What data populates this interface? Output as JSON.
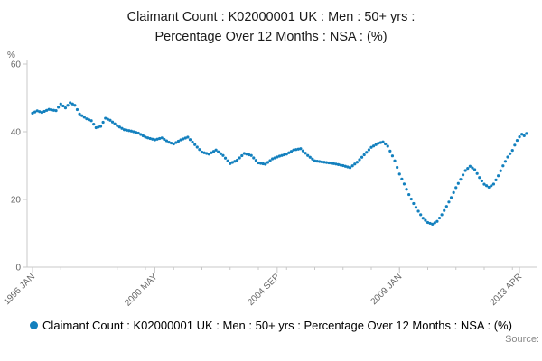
{
  "title": "Claimant Count : K02000001 UK : Men : 50+ yrs :\nPercentage Over 12 Months : NSA : (%)",
  "legend": {
    "label": "Claimant Count : K02000001 UK : Men : 50+ yrs : Percentage Over 12 Months : NSA : (%)",
    "marker_color": "#1380be"
  },
  "source_label": "Source:",
  "colors": {
    "accent": "#1380be",
    "axis_line": "#c8c8c8",
    "tick_text": "#666666"
  },
  "chart_data": {
    "type": "line",
    "marker": "dot",
    "frequency": "monthly",
    "title": "Claimant Count : K02000001 UK : Men : 50+ yrs : Percentage Over 12 Months : NSA : (%)",
    "ylabel": "%",
    "xlabel": "",
    "grid": false,
    "legend_position": "bottom",
    "x_range": [
      1996.0,
      2013.6
    ],
    "y_range": [
      0,
      60
    ],
    "y_ticks": [
      0,
      20,
      40,
      60
    ],
    "x_ticks": [
      {
        "date": 1996.0,
        "label": "1996 JAN"
      },
      {
        "date": 2000.333,
        "label": "2000 MAY"
      },
      {
        "date": 2004.667,
        "label": "2004 SEP"
      },
      {
        "date": 2009.0,
        "label": "2009 JAN"
      },
      {
        "date": 2013.25,
        "label": "2013 APR"
      }
    ],
    "series": [
      {
        "name": "Claimant Count : K02000001 UK : Men : 50+ yrs : Percentage Over 12 Months : NSA : (%)",
        "color": "#1380be",
        "points": [
          [
            1996.0,
            45.5
          ],
          [
            1996.17,
            46.2
          ],
          [
            1996.33,
            45.7
          ],
          [
            1996.58,
            46.6
          ],
          [
            1996.83,
            46.2
          ],
          [
            1997.0,
            48.2
          ],
          [
            1997.17,
            47.0
          ],
          [
            1997.33,
            48.6
          ],
          [
            1997.5,
            47.8
          ],
          [
            1997.67,
            45.2
          ],
          [
            1997.92,
            43.8
          ],
          [
            1998.08,
            43.3
          ],
          [
            1998.25,
            41.2
          ],
          [
            1998.42,
            41.6
          ],
          [
            1998.58,
            44.0
          ],
          [
            1998.75,
            43.4
          ],
          [
            1999.0,
            41.8
          ],
          [
            1999.25,
            40.6
          ],
          [
            1999.5,
            40.2
          ],
          [
            1999.75,
            39.6
          ],
          [
            2000.0,
            38.4
          ],
          [
            2000.33,
            37.6
          ],
          [
            2000.58,
            38.2
          ],
          [
            2000.83,
            36.9
          ],
          [
            2001.0,
            36.4
          ],
          [
            2001.25,
            37.6
          ],
          [
            2001.5,
            38.4
          ],
          [
            2001.75,
            36.2
          ],
          [
            2002.0,
            34.0
          ],
          [
            2002.25,
            33.4
          ],
          [
            2002.5,
            34.6
          ],
          [
            2002.75,
            33.0
          ],
          [
            2003.0,
            30.6
          ],
          [
            2003.25,
            31.6
          ],
          [
            2003.5,
            33.6
          ],
          [
            2003.75,
            33.0
          ],
          [
            2004.0,
            30.8
          ],
          [
            2004.25,
            30.4
          ],
          [
            2004.5,
            32.0
          ],
          [
            2004.75,
            32.8
          ],
          [
            2005.0,
            33.4
          ],
          [
            2005.25,
            34.6
          ],
          [
            2005.5,
            35.0
          ],
          [
            2005.75,
            33.0
          ],
          [
            2006.0,
            31.4
          ],
          [
            2006.33,
            31.0
          ],
          [
            2006.67,
            30.6
          ],
          [
            2007.0,
            30.0
          ],
          [
            2007.25,
            29.4
          ],
          [
            2007.5,
            31.0
          ],
          [
            2007.75,
            33.2
          ],
          [
            2008.0,
            35.4
          ],
          [
            2008.25,
            36.6
          ],
          [
            2008.42,
            37.0
          ],
          [
            2008.58,
            35.8
          ],
          [
            2008.83,
            31.5
          ],
          [
            2009.0,
            27.5
          ],
          [
            2009.17,
            24.5
          ],
          [
            2009.33,
            21.5
          ],
          [
            2009.5,
            18.8
          ],
          [
            2009.67,
            16.5
          ],
          [
            2009.83,
            14.5
          ],
          [
            2010.0,
            13.2
          ],
          [
            2010.17,
            12.7
          ],
          [
            2010.33,
            13.5
          ],
          [
            2010.5,
            15.5
          ],
          [
            2010.67,
            18.0
          ],
          [
            2010.83,
            20.5
          ],
          [
            2011.0,
            23.5
          ],
          [
            2011.17,
            26.0
          ],
          [
            2011.33,
            28.5
          ],
          [
            2011.5,
            29.8
          ],
          [
            2011.67,
            28.8
          ],
          [
            2011.83,
            26.5
          ],
          [
            2012.0,
            24.5
          ],
          [
            2012.17,
            23.6
          ],
          [
            2012.33,
            24.5
          ],
          [
            2012.5,
            27.0
          ],
          [
            2012.67,
            30.0
          ],
          [
            2012.83,
            32.5
          ],
          [
            2013.0,
            34.5
          ],
          [
            2013.08,
            36.0
          ],
          [
            2013.17,
            37.5
          ],
          [
            2013.25,
            38.5
          ],
          [
            2013.33,
            39.3
          ],
          [
            2013.42,
            38.8
          ],
          [
            2013.5,
            39.5
          ]
        ]
      }
    ]
  }
}
